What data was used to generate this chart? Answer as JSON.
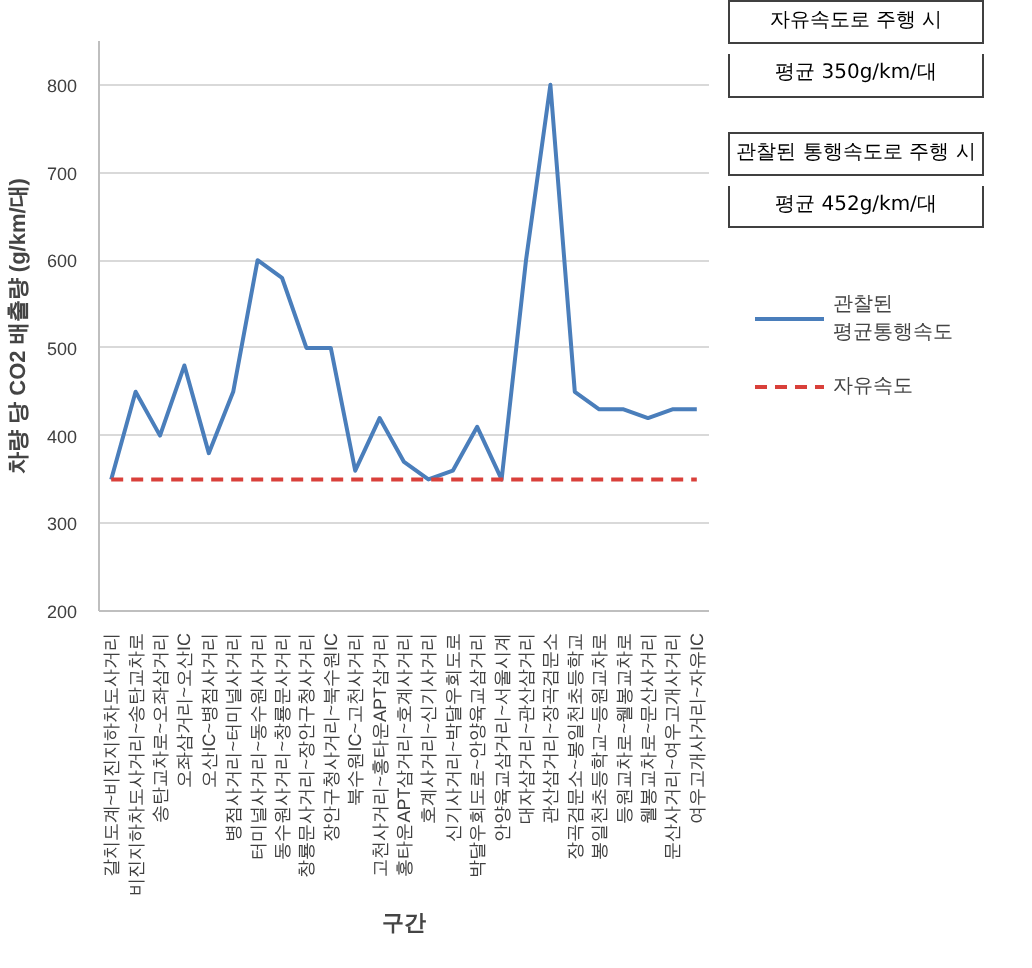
{
  "chart_data": {
    "type": "line",
    "xlabel": "구간",
    "ylabel": "차량 당 CO2 배출량 (g/km/대)",
    "categories": [
      "갈치도계~비진지하차도사거리",
      "비진지하차도사거리~송탄교차로",
      "송탄교차로~오좌삼거리",
      "오좌삼거리~오산IC",
      "오산IC~병점사거리",
      "병점사거리~터미널사거리",
      "터미널사거리~동수원사거리",
      "동수원사거리~창룡문사거리",
      "창룡문사거리~장안구청사거리",
      "장안구청사거리~북수원IC",
      "북수원IC~고천사거리",
      "고천사거리~홍타운APT삼거리",
      "홍타운APT삼거리~호계사거리",
      "호계사거리~신기사거리",
      "신기사거리~박달우회도로",
      "박달우회도로~안양육교삼거리",
      "안양육교삼거리~서울시계",
      "대자삼거리~관산삼거리",
      "관산삼거리~장곡검문소",
      "장곡검문소~봉일천초등학교",
      "봉일천초등학교~등원교차로",
      "등원교차로~웰봉교차로",
      "웰봉교차로~문산사거리",
      "문산사거리~여우고개사거리",
      "여우고개사거리~자유IC"
    ],
    "series": [
      {
        "name": "관찰된\n평균통행속도",
        "color": "#4a7ebb",
        "line_style": "solid",
        "values": [
          350,
          450,
          400,
          480,
          380,
          450,
          600,
          580,
          500,
          500,
          360,
          420,
          370,
          350,
          360,
          410,
          350,
          600,
          800,
          450,
          430,
          430,
          420,
          430,
          430
        ]
      },
      {
        "name": "자유속도",
        "color": "#d9403a",
        "line_style": "dashed",
        "values": [
          350,
          350,
          350,
          350,
          350,
          350,
          350,
          350,
          350,
          350,
          350,
          350,
          350,
          350,
          350,
          350,
          350,
          350,
          350,
          350,
          350,
          350,
          350,
          350,
          350
        ]
      }
    ],
    "ylim": [
      200,
      850
    ],
    "yticks": [
      200,
      300,
      400,
      500,
      600,
      700,
      800
    ],
    "grid": "y",
    "legend": "right",
    "marker": "none",
    "annotations": [
      "자유속도로 주행 시",
      "평균 350g/km/대",
      "관찰된 통행속도로 주행 시",
      "평균 452g/km/대"
    ]
  }
}
